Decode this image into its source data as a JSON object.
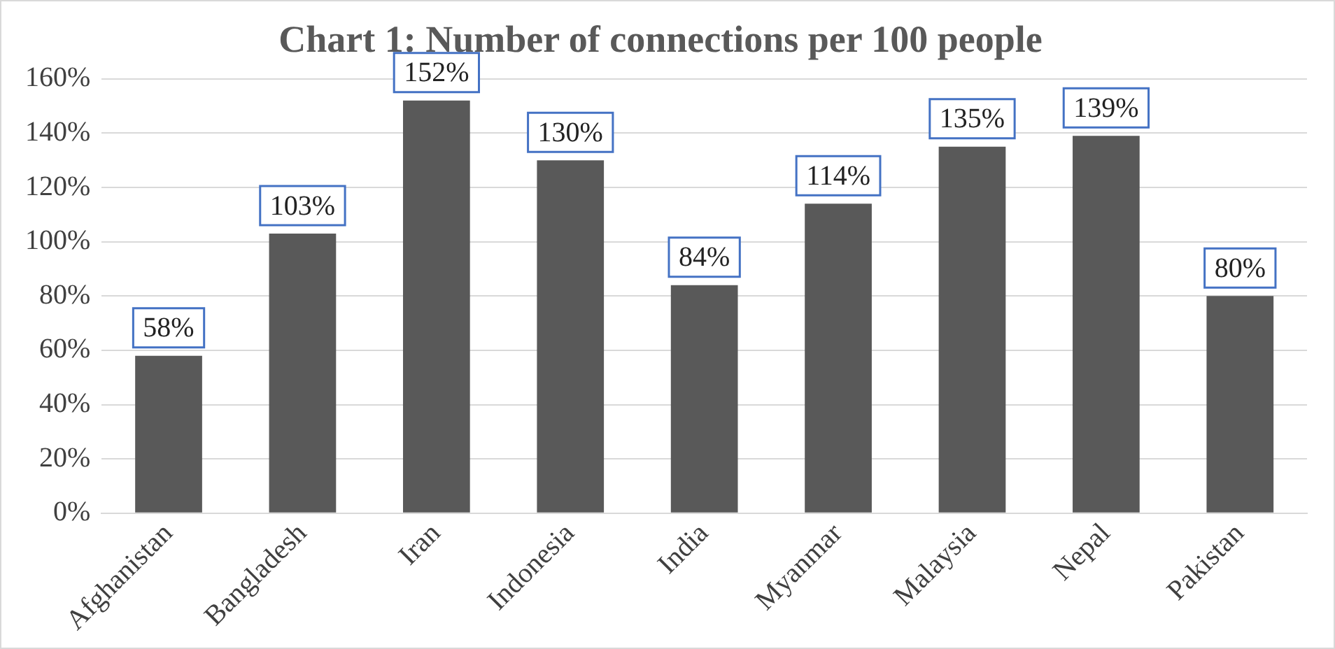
{
  "chart_data": {
    "type": "bar",
    "title": "Chart 1: Number of connections per 100 people",
    "categories": [
      "Afghanistan",
      "Bangladesh",
      "Iran",
      "Indonesia",
      "India",
      "Myanmar",
      "Malaysia",
      "Nepal",
      "Pakistan"
    ],
    "values": [
      58,
      103,
      152,
      130,
      84,
      114,
      135,
      139,
      80
    ],
    "value_labels": [
      "58%",
      "103%",
      "152%",
      "130%",
      "84%",
      "114%",
      "135%",
      "139%",
      "80%"
    ],
    "color": "#595959",
    "ylim": [
      0,
      160
    ],
    "yticks": [
      {
        "value": 0,
        "label": "0%"
      },
      {
        "value": 20,
        "label": "20%"
      },
      {
        "value": 40,
        "label": "40%"
      },
      {
        "value": 60,
        "label": "60%"
      },
      {
        "value": 80,
        "label": "80%"
      },
      {
        "value": 100,
        "label": "100%"
      },
      {
        "value": 120,
        "label": "120%"
      },
      {
        "value": 140,
        "label": "140%"
      },
      {
        "value": 160,
        "label": "160%"
      }
    ],
    "grid": "y"
  }
}
